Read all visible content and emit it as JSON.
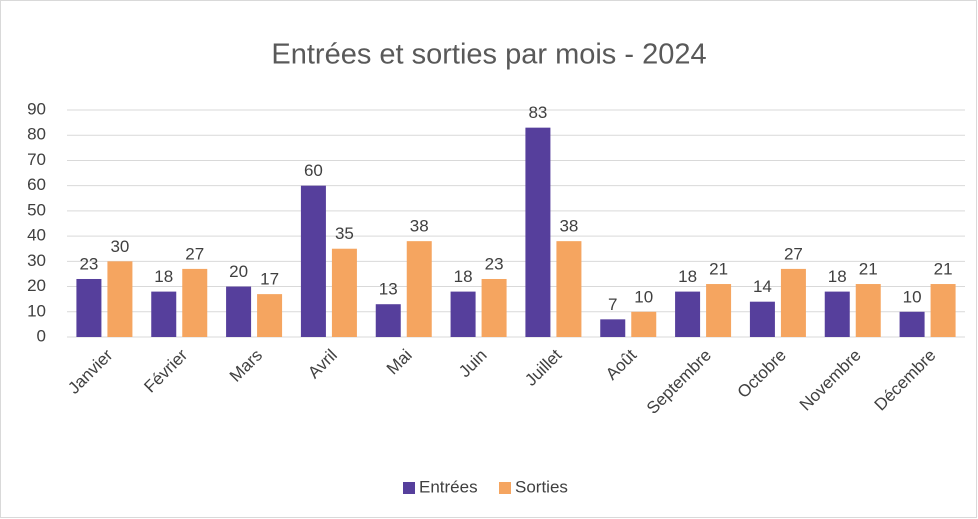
{
  "chart_data": {
    "type": "bar",
    "title": "Entrées et sorties par mois - 2024",
    "categories": [
      "Janvier",
      "Février",
      "Mars",
      "Avril",
      "Mai",
      "Juin",
      "Juillet",
      "Août",
      "Septembre",
      "Octobre",
      "Novembre",
      "Décembre"
    ],
    "series": [
      {
        "name": "Entrées",
        "color": "#563f9c",
        "values": [
          23,
          18,
          20,
          60,
          13,
          18,
          83,
          7,
          18,
          14,
          18,
          10
        ]
      },
      {
        "name": "Sorties",
        "color": "#f5a560",
        "values": [
          30,
          27,
          17,
          35,
          38,
          23,
          38,
          10,
          21,
          27,
          21,
          21
        ]
      }
    ],
    "ylim": [
      0,
      90
    ],
    "yticks": [
      0,
      10,
      20,
      30,
      40,
      50,
      60,
      70,
      80,
      90
    ],
    "grid": true,
    "legend": "bottom",
    "data_labels": true
  }
}
